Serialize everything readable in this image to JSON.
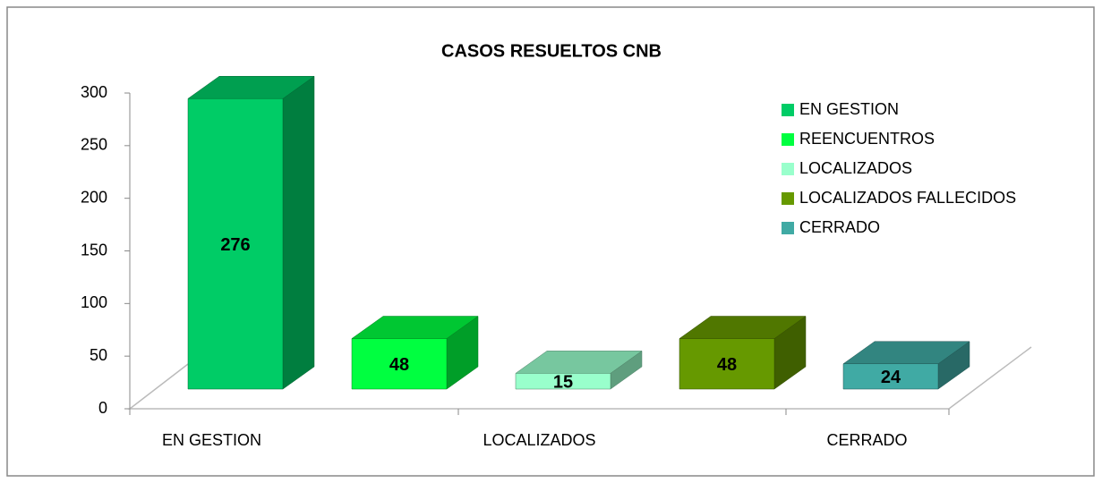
{
  "chart_data": {
    "type": "bar3d",
    "title": "CASOS RESUELTOS CNB",
    "categories": [
      "EN GESTION",
      null,
      "LOCALIZADOS",
      null,
      "CERRADO"
    ],
    "values": [
      276,
      48,
      15,
      48,
      24
    ],
    "colors": [
      "#00cc66",
      "#00ff40",
      "#99ffcc",
      "#669900",
      "#40aaa4"
    ],
    "legend": [
      "EN GESTION",
      "REENCUENTROS",
      "LOCALIZADOS",
      "LOCALIZADOS FALLECIDOS",
      "CERRADO"
    ],
    "legend_position": "upper right",
    "ylim": [
      0,
      300
    ],
    "yticks": [
      0,
      50,
      100,
      150,
      200,
      250,
      300
    ]
  }
}
